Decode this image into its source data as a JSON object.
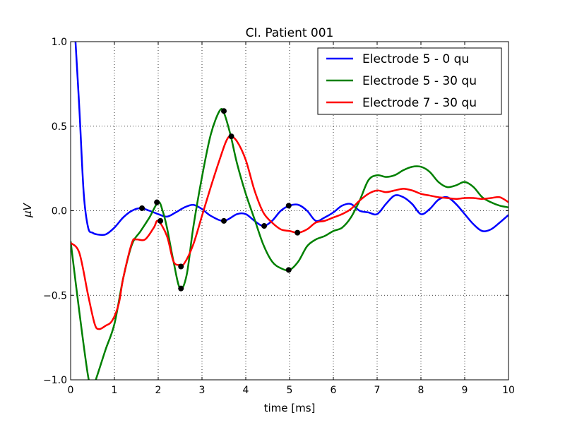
{
  "chart_data": {
    "type": "line",
    "title": "CI. Patient 001",
    "xlabel": "time [ms]",
    "ylabel": "μV",
    "xlim": [
      0,
      10
    ],
    "ylim": [
      -1.0,
      1.0
    ],
    "x_ticks": [
      0,
      1,
      2,
      3,
      4,
      5,
      6,
      7,
      8,
      9,
      10
    ],
    "x_tick_labels": [
      "0",
      "1",
      "2",
      "3",
      "4",
      "5",
      "6",
      "7",
      "8",
      "9",
      "10"
    ],
    "y_ticks": [
      -1.0,
      -0.5,
      0.0,
      0.5,
      1.0
    ],
    "y_tick_labels": [
      "−1.0",
      "−0.5",
      "0.0",
      "0.5",
      "1.0"
    ],
    "grid": true,
    "legend_position": "top-right",
    "series": [
      {
        "name": "Electrode 5 - 0 qu",
        "color": "#0000ff",
        "points": [
          [
            0.1,
            1.05
          ],
          [
            0.2,
            0.6
          ],
          [
            0.3,
            0.1
          ],
          [
            0.4,
            -0.1
          ],
          [
            0.5,
            -0.13
          ],
          [
            0.6,
            -0.14
          ],
          [
            0.8,
            -0.14
          ],
          [
            1.0,
            -0.1
          ],
          [
            1.2,
            -0.04
          ],
          [
            1.4,
            0.0
          ],
          [
            1.6,
            0.015
          ],
          [
            1.8,
            0.0
          ],
          [
            2.0,
            -0.02
          ],
          [
            2.2,
            -0.035
          ],
          [
            2.4,
            -0.01
          ],
          [
            2.6,
            0.02
          ],
          [
            2.8,
            0.035
          ],
          [
            3.0,
            0.01
          ],
          [
            3.2,
            -0.03
          ],
          [
            3.5,
            -0.06
          ],
          [
            3.8,
            -0.02
          ],
          [
            4.0,
            -0.02
          ],
          [
            4.2,
            -0.06
          ],
          [
            4.4,
            -0.09
          ],
          [
            4.6,
            -0.06
          ],
          [
            4.8,
            0.0
          ],
          [
            5.0,
            0.03
          ],
          [
            5.2,
            0.035
          ],
          [
            5.4,
            0.0
          ],
          [
            5.6,
            -0.06
          ],
          [
            5.8,
            -0.04
          ],
          [
            6.0,
            -0.01
          ],
          [
            6.2,
            0.03
          ],
          [
            6.4,
            0.04
          ],
          [
            6.6,
            0.0
          ],
          [
            6.8,
            -0.01
          ],
          [
            7.0,
            -0.02
          ],
          [
            7.2,
            0.04
          ],
          [
            7.4,
            0.09
          ],
          [
            7.6,
            0.08
          ],
          [
            7.8,
            0.04
          ],
          [
            8.0,
            -0.02
          ],
          [
            8.2,
            0.01
          ],
          [
            8.4,
            0.065
          ],
          [
            8.6,
            0.08
          ],
          [
            8.8,
            0.04
          ],
          [
            9.0,
            -0.02
          ],
          [
            9.2,
            -0.08
          ],
          [
            9.4,
            -0.12
          ],
          [
            9.6,
            -0.11
          ],
          [
            9.8,
            -0.07
          ],
          [
            10.0,
            -0.025
          ]
        ]
      },
      {
        "name": "Electrode 5 - 30 qu",
        "color": "#008000",
        "points": [
          [
            0.0,
            -0.18
          ],
          [
            0.2,
            -0.6
          ],
          [
            0.4,
            -0.98
          ],
          [
            0.5,
            -1.05
          ],
          [
            0.6,
            -0.98
          ],
          [
            0.8,
            -0.82
          ],
          [
            1.0,
            -0.67
          ],
          [
            1.2,
            -0.4
          ],
          [
            1.4,
            -0.2
          ],
          [
            1.6,
            -0.12
          ],
          [
            1.8,
            -0.04
          ],
          [
            2.0,
            0.05
          ],
          [
            2.1,
            0.0
          ],
          [
            2.2,
            -0.1
          ],
          [
            2.35,
            -0.3
          ],
          [
            2.5,
            -0.46
          ],
          [
            2.65,
            -0.38
          ],
          [
            2.8,
            -0.1
          ],
          [
            3.0,
            0.2
          ],
          [
            3.2,
            0.45
          ],
          [
            3.4,
            0.59
          ],
          [
            3.5,
            0.58
          ],
          [
            3.65,
            0.45
          ],
          [
            3.8,
            0.28
          ],
          [
            4.0,
            0.1
          ],
          [
            4.2,
            -0.05
          ],
          [
            4.4,
            -0.2
          ],
          [
            4.6,
            -0.3
          ],
          [
            4.8,
            -0.34
          ],
          [
            5.0,
            -0.35
          ],
          [
            5.2,
            -0.3
          ],
          [
            5.4,
            -0.21
          ],
          [
            5.6,
            -0.17
          ],
          [
            5.8,
            -0.15
          ],
          [
            6.0,
            -0.12
          ],
          [
            6.2,
            -0.1
          ],
          [
            6.4,
            -0.04
          ],
          [
            6.6,
            0.06
          ],
          [
            6.8,
            0.18
          ],
          [
            7.0,
            0.21
          ],
          [
            7.2,
            0.2
          ],
          [
            7.4,
            0.21
          ],
          [
            7.6,
            0.24
          ],
          [
            7.8,
            0.26
          ],
          [
            8.0,
            0.26
          ],
          [
            8.2,
            0.23
          ],
          [
            8.4,
            0.17
          ],
          [
            8.6,
            0.14
          ],
          [
            8.8,
            0.15
          ],
          [
            9.0,
            0.17
          ],
          [
            9.2,
            0.14
          ],
          [
            9.4,
            0.08
          ],
          [
            9.6,
            0.05
          ],
          [
            9.8,
            0.03
          ],
          [
            10.0,
            0.02
          ]
        ]
      },
      {
        "name": "Electrode 7 - 30 qu",
        "color": "#ff0000",
        "points": [
          [
            0.0,
            -0.19
          ],
          [
            0.2,
            -0.25
          ],
          [
            0.4,
            -0.5
          ],
          [
            0.55,
            -0.67
          ],
          [
            0.65,
            -0.7
          ],
          [
            0.8,
            -0.68
          ],
          [
            0.95,
            -0.65
          ],
          [
            1.1,
            -0.55
          ],
          [
            1.2,
            -0.4
          ],
          [
            1.4,
            -0.19
          ],
          [
            1.5,
            -0.17
          ],
          [
            1.7,
            -0.17
          ],
          [
            1.9,
            -0.1
          ],
          [
            2.0,
            -0.06
          ],
          [
            2.2,
            -0.15
          ],
          [
            2.35,
            -0.3
          ],
          [
            2.5,
            -0.32
          ],
          [
            2.6,
            -0.31
          ],
          [
            2.8,
            -0.2
          ],
          [
            3.0,
            -0.03
          ],
          [
            3.2,
            0.14
          ],
          [
            3.4,
            0.3
          ],
          [
            3.55,
            0.41
          ],
          [
            3.65,
            0.44
          ],
          [
            3.8,
            0.41
          ],
          [
            4.0,
            0.3
          ],
          [
            4.2,
            0.12
          ],
          [
            4.4,
            -0.01
          ],
          [
            4.6,
            -0.07
          ],
          [
            4.8,
            -0.11
          ],
          [
            5.0,
            -0.12
          ],
          [
            5.2,
            -0.13
          ],
          [
            5.4,
            -0.11
          ],
          [
            5.6,
            -0.07
          ],
          [
            5.8,
            -0.06
          ],
          [
            6.0,
            -0.04
          ],
          [
            6.2,
            -0.02
          ],
          [
            6.4,
            0.01
          ],
          [
            6.6,
            0.06
          ],
          [
            6.8,
            0.1
          ],
          [
            7.0,
            0.12
          ],
          [
            7.2,
            0.11
          ],
          [
            7.4,
            0.12
          ],
          [
            7.6,
            0.13
          ],
          [
            7.8,
            0.12
          ],
          [
            8.0,
            0.1
          ],
          [
            8.2,
            0.09
          ],
          [
            8.4,
            0.08
          ],
          [
            8.6,
            0.075
          ],
          [
            8.8,
            0.07
          ],
          [
            9.0,
            0.075
          ],
          [
            9.2,
            0.075
          ],
          [
            9.4,
            0.07
          ],
          [
            9.6,
            0.075
          ],
          [
            9.8,
            0.08
          ],
          [
            10.0,
            0.05
          ]
        ]
      }
    ],
    "markers": {
      "color": "#000000",
      "points": [
        [
          1.63,
          0.015
        ],
        [
          1.97,
          0.05
        ],
        [
          2.05,
          -0.06
        ],
        [
          2.52,
          -0.33
        ],
        [
          2.52,
          -0.46
        ],
        [
          3.5,
          0.59
        ],
        [
          3.5,
          -0.06
        ],
        [
          3.67,
          0.44
        ],
        [
          4.42,
          -0.09
        ],
        [
          4.98,
          0.03
        ],
        [
          4.98,
          -0.35
        ],
        [
          5.18,
          -0.13
        ]
      ]
    }
  }
}
